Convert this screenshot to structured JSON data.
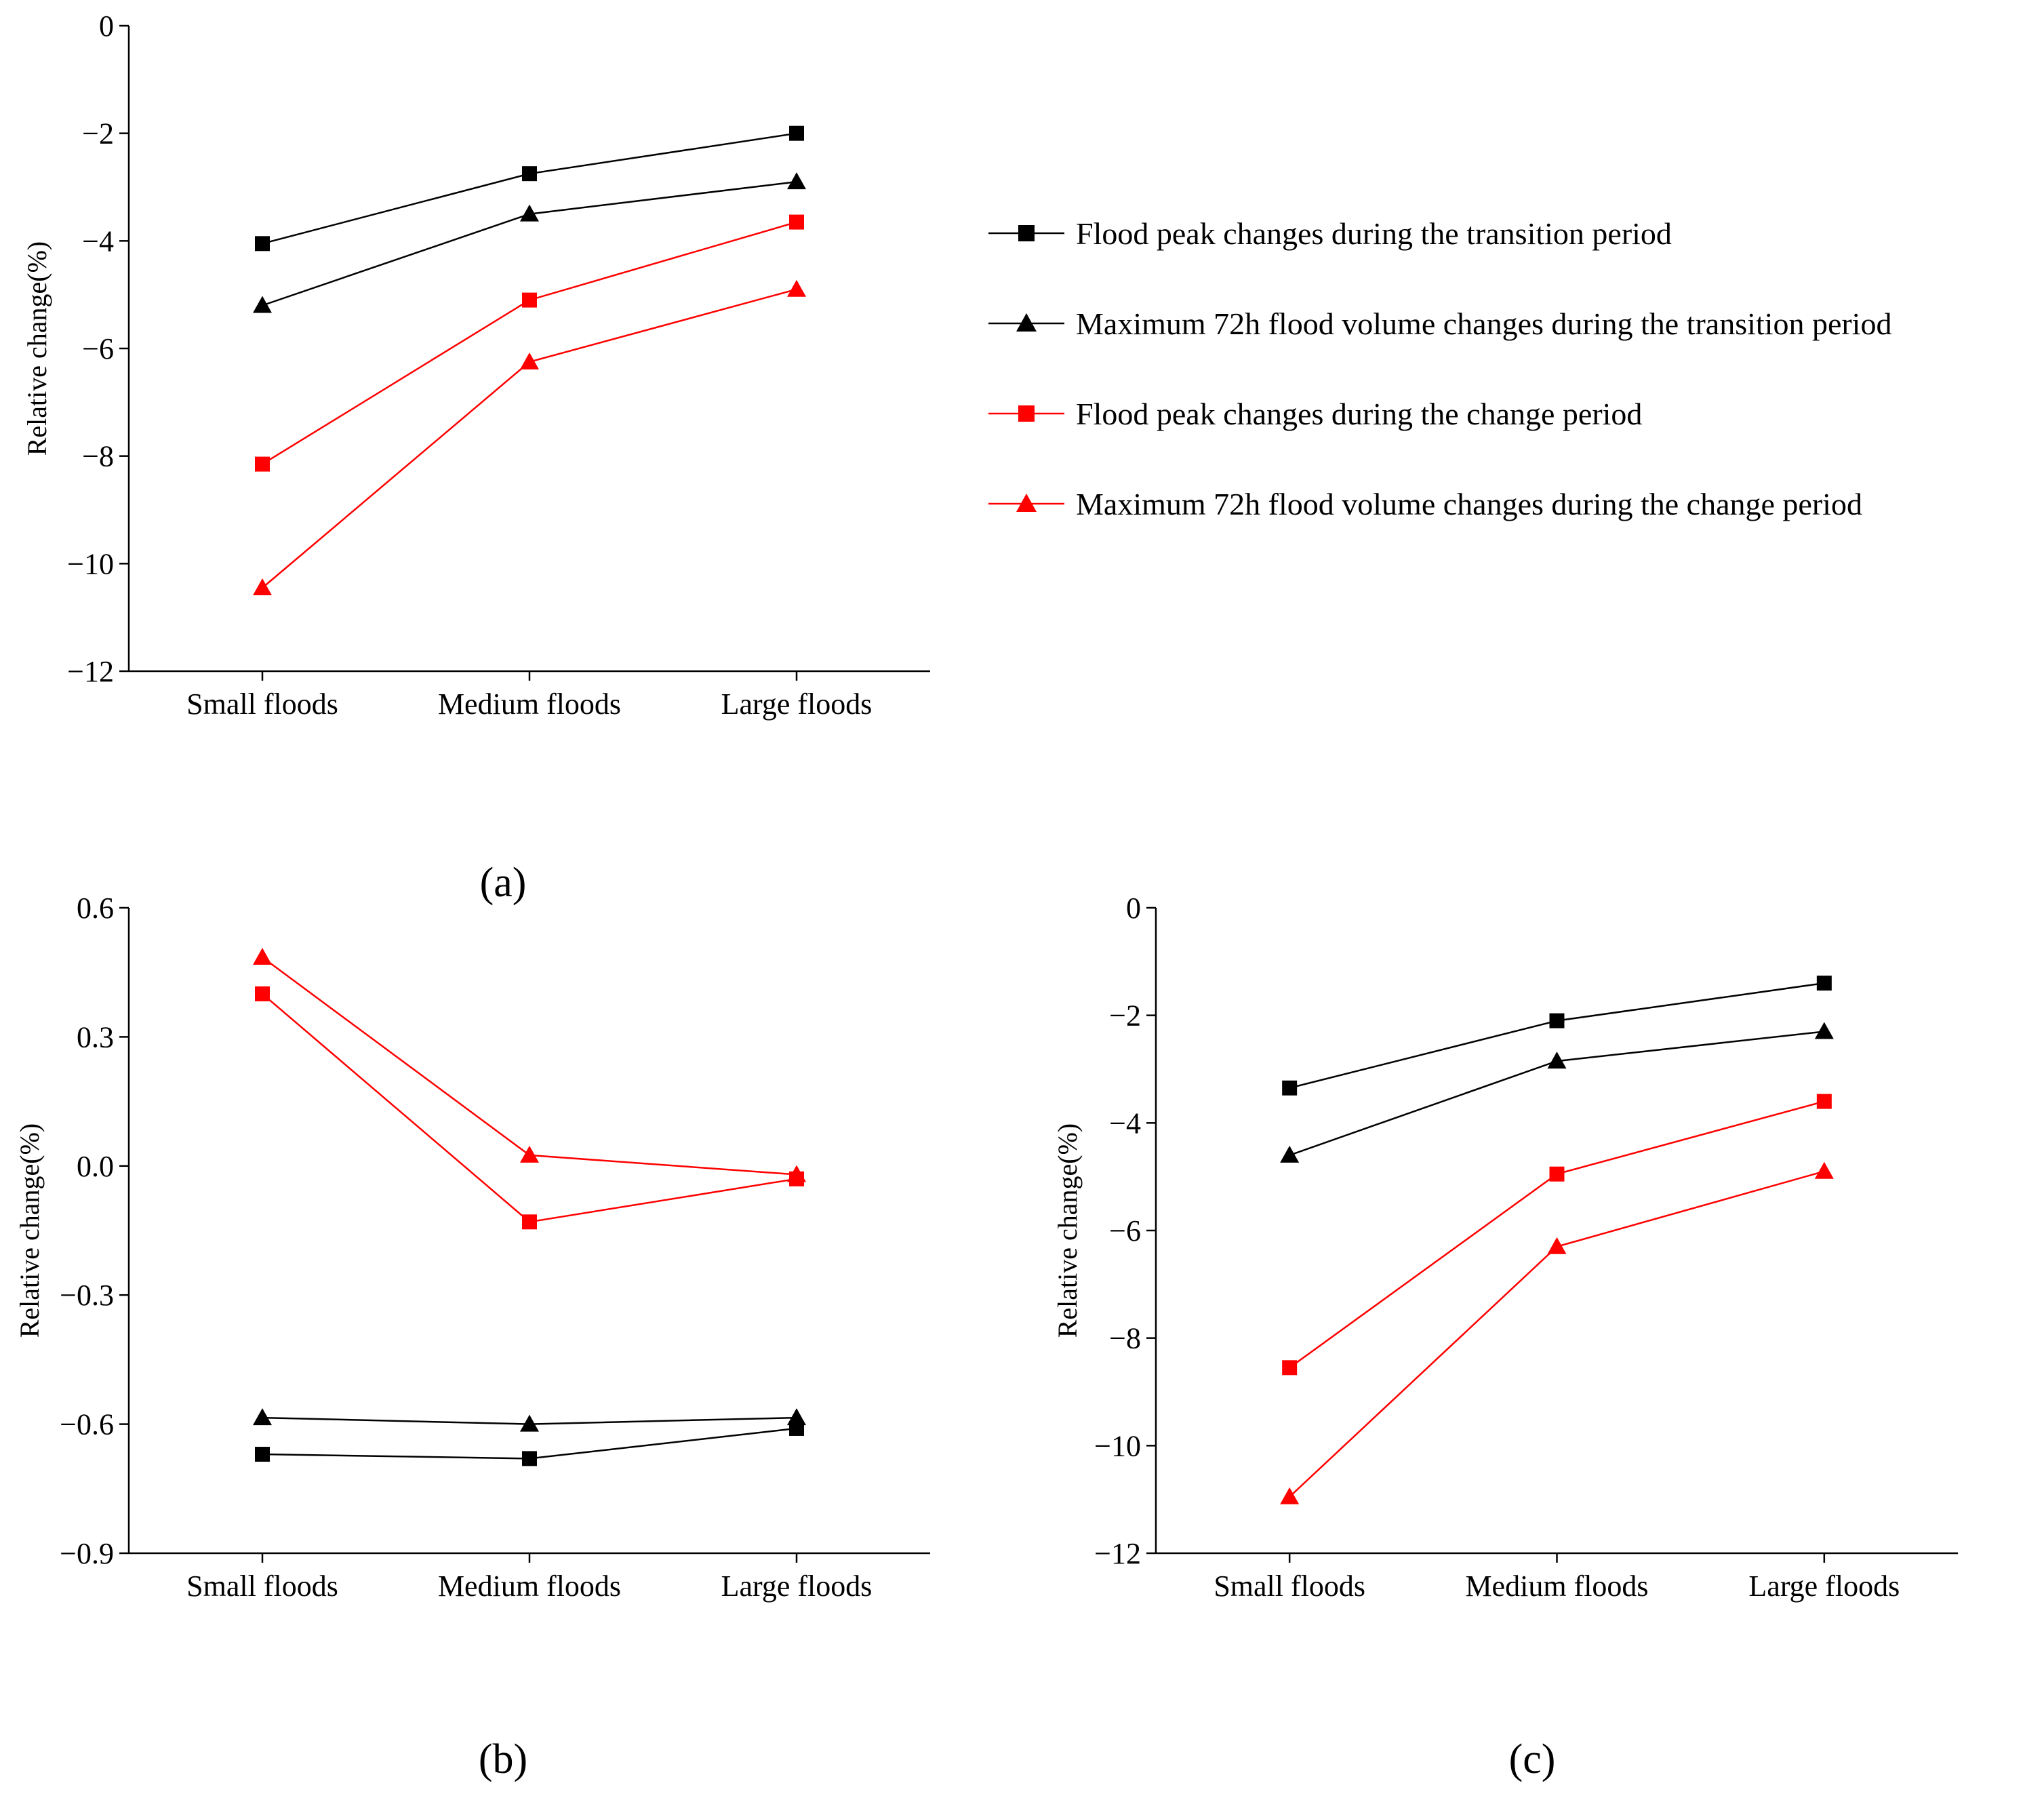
{
  "chart_data": [
    {
      "panel": "(a)",
      "type": "line",
      "ylabel": "Relative change(%)",
      "xlabel": "",
      "categories": [
        "Small floods",
        "Medium floods",
        "Large floods"
      ],
      "ylim": [
        -12,
        0
      ],
      "yticks": [
        0,
        -2,
        -4,
        -6,
        -8,
        -10,
        -12
      ],
      "ytick_labels": [
        "0",
        "−2",
        "−4",
        "−6",
        "−8",
        "−10",
        "−12"
      ],
      "series": [
        {
          "name": "Flood peak changes during the transition period",
          "color": "#000000",
          "marker": "square",
          "values": [
            -4.05,
            -2.75,
            -2.0
          ]
        },
        {
          "name": "Maximum 72h flood volume changes during the transition period",
          "color": "#000000",
          "marker": "triangle",
          "values": [
            -5.2,
            -3.5,
            -2.9
          ]
        },
        {
          "name": "Flood peak changes during the change period",
          "color": "#ff0000",
          "marker": "square",
          "values": [
            -8.15,
            -5.1,
            -3.65
          ]
        },
        {
          "name": "Maximum 72h flood volume changes during the change period",
          "color": "#ff0000",
          "marker": "triangle",
          "values": [
            -10.45,
            -6.25,
            -4.9
          ]
        }
      ]
    },
    {
      "panel": "(b)",
      "type": "line",
      "ylabel": "Relative change(%)",
      "xlabel": "",
      "categories": [
        "Small floods",
        "Medium floods",
        "Large floods"
      ],
      "ylim": [
        -0.9,
        0.6
      ],
      "yticks": [
        0.6,
        0.3,
        0.0,
        -0.3,
        -0.6,
        -0.9
      ],
      "ytick_labels": [
        "0.6",
        "0.3",
        "0.0",
        "−0.3",
        "−0.6",
        "−0.9"
      ],
      "series": [
        {
          "name": "Flood peak changes during the transition period",
          "color": "#000000",
          "marker": "square",
          "values": [
            -0.67,
            -0.68,
            -0.61
          ]
        },
        {
          "name": "Maximum 72h flood volume changes during the transition period",
          "color": "#000000",
          "marker": "triangle",
          "values": [
            -0.585,
            -0.6,
            -0.585
          ]
        },
        {
          "name": "Flood peak changes during the change period",
          "color": "#ff0000",
          "marker": "square",
          "values": [
            0.4,
            -0.13,
            -0.03
          ]
        },
        {
          "name": "Maximum 72h flood volume changes during the change period",
          "color": "#ff0000",
          "marker": "triangle",
          "values": [
            0.485,
            0.025,
            -0.02
          ]
        }
      ]
    },
    {
      "panel": "(c)",
      "type": "line",
      "ylabel": "Relative change(%)",
      "xlabel": "",
      "categories": [
        "Small floods",
        "Medium floods",
        "Large floods"
      ],
      "ylim": [
        -12,
        0
      ],
      "yticks": [
        0,
        -2,
        -4,
        -6,
        -8,
        -10,
        -12
      ],
      "ytick_labels": [
        "0",
        "−2",
        "−4",
        "−6",
        "−8",
        "−10",
        "−12"
      ],
      "series": [
        {
          "name": "Flood peak changes during the transition period",
          "color": "#000000",
          "marker": "square",
          "values": [
            -3.35,
            -2.1,
            -1.4
          ]
        },
        {
          "name": "Maximum 72h flood volume changes during the transition period",
          "color": "#000000",
          "marker": "triangle",
          "values": [
            -4.6,
            -2.85,
            -2.3
          ]
        },
        {
          "name": "Flood peak changes during the change period",
          "color": "#ff0000",
          "marker": "square",
          "values": [
            -8.55,
            -4.95,
            -3.6
          ]
        },
        {
          "name": "Maximum 72h flood volume changes during the change period",
          "color": "#ff0000",
          "marker": "triangle",
          "values": [
            -10.95,
            -6.3,
            -4.9
          ]
        }
      ]
    }
  ],
  "legend": {
    "entries": [
      {
        "label": "Flood peak changes during the transition period",
        "color": "#000000",
        "marker": "square"
      },
      {
        "label": "Maximum 72h flood volume changes during the transition period",
        "color": "#000000",
        "marker": "triangle"
      },
      {
        "label": "Flood peak changes during the change period",
        "color": "#ff0000",
        "marker": "square"
      },
      {
        "label": "Maximum 72h flood volume changes during the change period",
        "color": "#ff0000",
        "marker": "triangle"
      }
    ]
  }
}
